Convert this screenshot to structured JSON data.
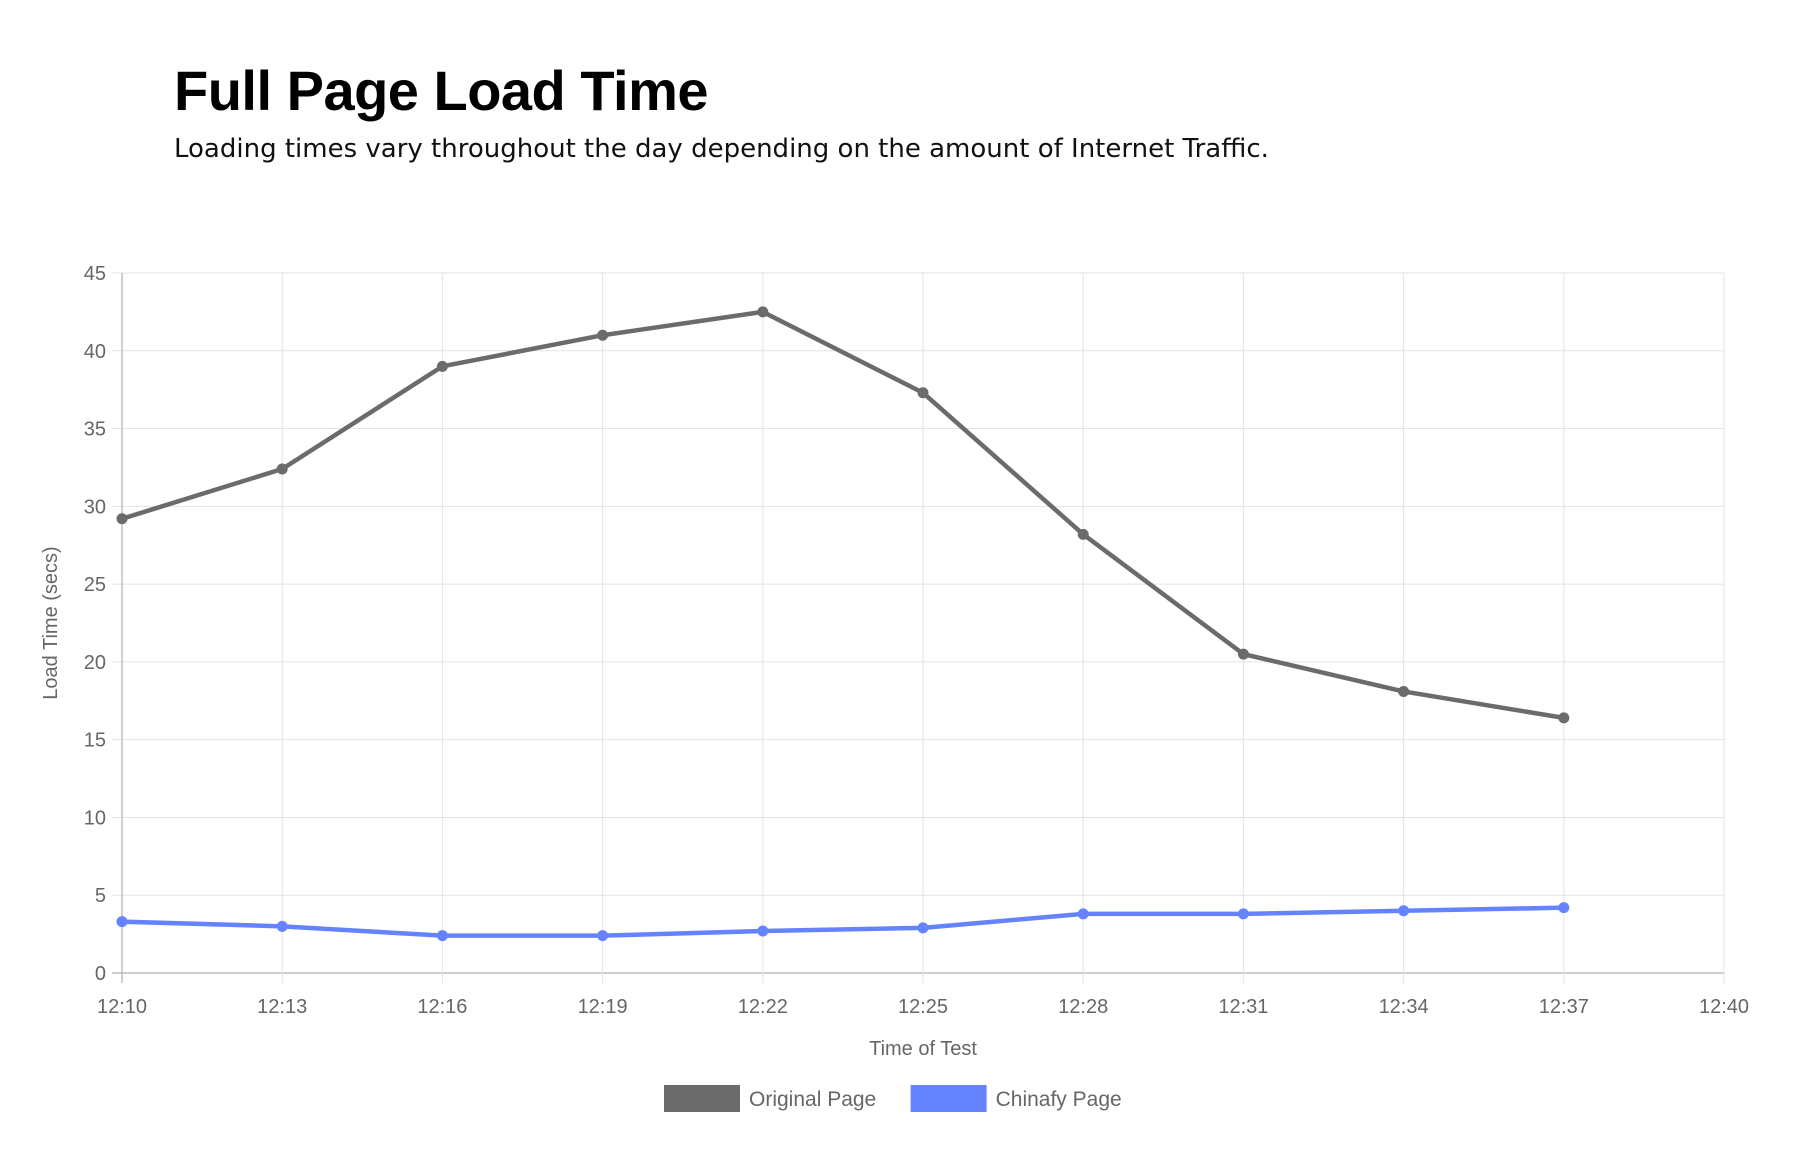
{
  "header": {
    "title": "Full Page Load Time",
    "subtitle": "Loading times vary throughout the day depending on the amount of Internet Traffic."
  },
  "chart_data": {
    "type": "line",
    "title": "Full Page Load Time",
    "xlabel": "Time of Test",
    "ylabel": "Load Time (secs)",
    "x_ticks": [
      "12:10",
      "12:13",
      "12:16",
      "12:19",
      "12:22",
      "12:25",
      "12:28",
      "12:31",
      "12:34",
      "12:37",
      "12:40"
    ],
    "y_ticks": [
      0,
      5,
      10,
      15,
      20,
      25,
      30,
      35,
      40,
      45
    ],
    "ylim": [
      0,
      45
    ],
    "grid": true,
    "legend_position": "bottom",
    "categories": [
      "12:10",
      "12:13",
      "12:16",
      "12:19",
      "12:22",
      "12:25",
      "12:28",
      "12:31",
      "12:34",
      "12:37"
    ],
    "series": [
      {
        "name": "Original Page",
        "color": "#6b6b6b",
        "values": [
          29.2,
          32.4,
          39.0,
          41.0,
          42.5,
          37.3,
          28.2,
          20.5,
          18.1,
          16.4
        ]
      },
      {
        "name": "Chinafy Page",
        "color": "#6583fe",
        "values": [
          3.3,
          3.0,
          2.4,
          2.4,
          2.7,
          2.9,
          3.8,
          3.8,
          4.0,
          4.2
        ]
      }
    ]
  }
}
